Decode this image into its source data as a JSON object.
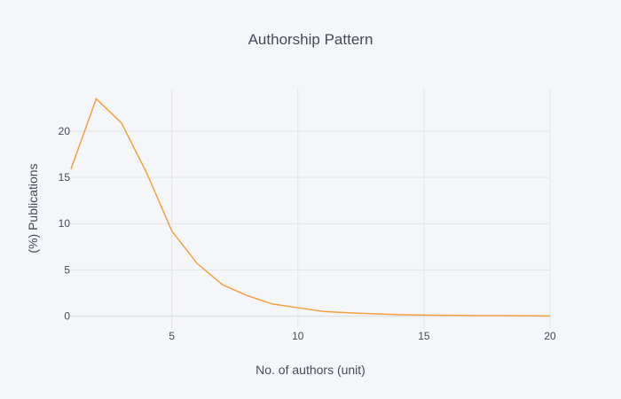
{
  "chart_data": {
    "type": "line",
    "title": "Authorship Pattern",
    "xlabel": "No. of authors (unit)",
    "ylabel": "(%) Publications",
    "xlim": [
      1,
      20
    ],
    "ylim": [
      -1.3,
      24.6
    ],
    "x_ticks": [
      5,
      10,
      15,
      20
    ],
    "y_ticks": [
      0,
      5,
      10,
      15,
      20
    ],
    "grid": true,
    "line_color": "#f5a040",
    "series": [
      {
        "x": [
          1,
          2,
          3,
          4,
          5,
          6,
          7,
          8,
          9,
          10,
          11,
          12,
          13,
          14,
          15,
          16,
          17,
          18,
          19,
          20
        ],
        "y": [
          15.9,
          23.5,
          20.9,
          15.5,
          9.2,
          5.7,
          3.4,
          2.2,
          1.3,
          0.9,
          0.5,
          0.35,
          0.25,
          0.15,
          0.1,
          0.08,
          0.06,
          0.05,
          0.03,
          0.01
        ]
      }
    ]
  }
}
